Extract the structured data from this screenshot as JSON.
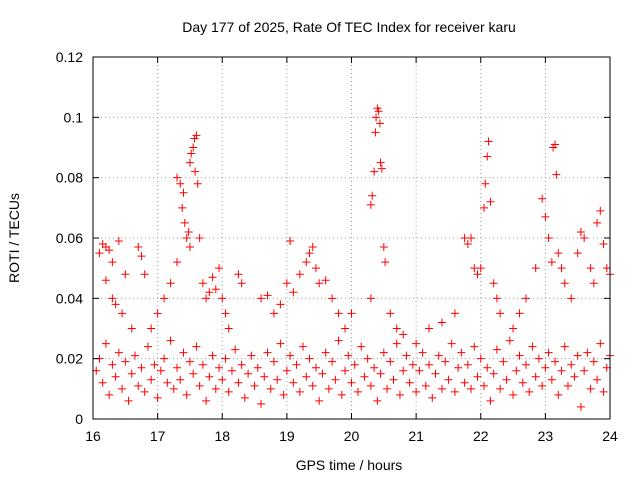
{
  "chart_data": {
    "type": "scatter",
    "title": "Day 177 of 2025, Rate Of TEC Index for receiver karu",
    "xlabel": "GPS time / hours",
    "ylabel": "ROTI / TECUs",
    "xlim": [
      16,
      24
    ],
    "ylim": [
      0,
      0.12
    ],
    "x_ticks": [
      16,
      17,
      18,
      19,
      20,
      21,
      22,
      23,
      24
    ],
    "x_tick_labels": [
      "16",
      "17",
      "18",
      "19",
      "20",
      "21",
      "22",
      "23",
      "24"
    ],
    "y_ticks": [
      0,
      0.02,
      0.04,
      0.06,
      0.08,
      0.1,
      0.12
    ],
    "y_tick_labels": [
      "0",
      "0.02",
      "0.04",
      "0.06",
      "0.08",
      "0.1",
      "0.12"
    ],
    "grid": true,
    "marker": "plus",
    "color": "#ff0000",
    "series": [
      {
        "name": "ROTI",
        "points": [
          [
            16.1,
            0.055
          ],
          [
            16.15,
            0.058
          ],
          [
            16.2,
            0.057
          ],
          [
            16.25,
            0.056
          ],
          [
            16.3,
            0.052
          ],
          [
            16.4,
            0.059
          ],
          [
            16.2,
            0.046
          ],
          [
            16.3,
            0.04
          ],
          [
            16.35,
            0.038
          ],
          [
            16.5,
            0.048
          ],
          [
            16.45,
            0.035
          ],
          [
            16.6,
            0.03
          ],
          [
            16.7,
            0.057
          ],
          [
            16.75,
            0.054
          ],
          [
            16.8,
            0.048
          ],
          [
            16.9,
            0.03
          ],
          [
            17.0,
            0.035
          ],
          [
            17.1,
            0.04
          ],
          [
            17.2,
            0.045
          ],
          [
            17.3,
            0.052
          ],
          [
            17.3,
            0.08
          ],
          [
            17.35,
            0.078
          ],
          [
            17.4,
            0.075
          ],
          [
            17.38,
            0.07
          ],
          [
            17.42,
            0.065
          ],
          [
            17.45,
            0.06
          ],
          [
            17.5,
            0.057
          ],
          [
            17.48,
            0.062
          ],
          [
            17.5,
            0.085
          ],
          [
            17.52,
            0.088
          ],
          [
            17.55,
            0.09
          ],
          [
            17.57,
            0.093
          ],
          [
            17.6,
            0.094
          ],
          [
            17.58,
            0.082
          ],
          [
            17.62,
            0.078
          ],
          [
            17.65,
            0.06
          ],
          [
            17.7,
            0.045
          ],
          [
            17.75,
            0.04
          ],
          [
            17.8,
            0.042
          ],
          [
            17.85,
            0.047
          ],
          [
            17.9,
            0.043
          ],
          [
            17.95,
            0.05
          ],
          [
            18.0,
            0.04
          ],
          [
            18.05,
            0.035
          ],
          [
            18.1,
            0.03
          ],
          [
            18.25,
            0.048
          ],
          [
            18.3,
            0.045
          ],
          [
            18.6,
            0.04
          ],
          [
            18.7,
            0.041
          ],
          [
            18.8,
            0.035
          ],
          [
            18.9,
            0.038
          ],
          [
            19.05,
            0.059
          ],
          [
            19.0,
            0.045
          ],
          [
            19.1,
            0.042
          ],
          [
            19.2,
            0.048
          ],
          [
            19.3,
            0.052
          ],
          [
            19.35,
            0.055
          ],
          [
            19.4,
            0.057
          ],
          [
            19.45,
            0.05
          ],
          [
            19.5,
            0.045
          ],
          [
            19.6,
            0.046
          ],
          [
            19.7,
            0.04
          ],
          [
            19.8,
            0.035
          ],
          [
            19.9,
            0.03
          ],
          [
            20.0,
            0.035
          ],
          [
            20.3,
            0.071
          ],
          [
            20.32,
            0.074
          ],
          [
            20.35,
            0.082
          ],
          [
            20.37,
            0.095
          ],
          [
            20.38,
            0.1
          ],
          [
            20.4,
            0.103
          ],
          [
            20.42,
            0.102
          ],
          [
            20.44,
            0.098
          ],
          [
            20.45,
            0.085
          ],
          [
            20.47,
            0.083
          ],
          [
            20.5,
            0.057
          ],
          [
            20.52,
            0.052
          ],
          [
            20.3,
            0.04
          ],
          [
            20.6,
            0.035
          ],
          [
            20.7,
            0.03
          ],
          [
            20.8,
            0.028
          ],
          [
            21.0,
            0.025
          ],
          [
            21.2,
            0.03
          ],
          [
            21.4,
            0.032
          ],
          [
            21.6,
            0.035
          ],
          [
            21.75,
            0.06
          ],
          [
            21.8,
            0.058
          ],
          [
            21.85,
            0.06
          ],
          [
            21.9,
            0.05
          ],
          [
            21.95,
            0.048
          ],
          [
            22.0,
            0.05
          ],
          [
            22.05,
            0.07
          ],
          [
            22.07,
            0.078
          ],
          [
            22.1,
            0.087
          ],
          [
            22.12,
            0.092
          ],
          [
            22.15,
            0.072
          ],
          [
            22.2,
            0.045
          ],
          [
            22.25,
            0.04
          ],
          [
            22.3,
            0.035
          ],
          [
            22.5,
            0.03
          ],
          [
            22.6,
            0.035
          ],
          [
            22.7,
            0.04
          ],
          [
            22.85,
            0.05
          ],
          [
            22.95,
            0.073
          ],
          [
            23.0,
            0.067
          ],
          [
            23.05,
            0.06
          ],
          [
            23.1,
            0.052
          ],
          [
            23.12,
            0.09
          ],
          [
            23.15,
            0.091
          ],
          [
            23.17,
            0.081
          ],
          [
            23.2,
            0.055
          ],
          [
            23.25,
            0.05
          ],
          [
            23.3,
            0.045
          ],
          [
            23.4,
            0.04
          ],
          [
            23.5,
            0.055
          ],
          [
            23.55,
            0.062
          ],
          [
            23.6,
            0.06
          ],
          [
            23.7,
            0.05
          ],
          [
            23.75,
            0.045
          ],
          [
            23.8,
            0.065
          ],
          [
            23.85,
            0.069
          ],
          [
            23.9,
            0.058
          ],
          [
            23.95,
            0.05
          ],
          [
            24.0,
            0.048
          ],
          [
            16.05,
            0.016
          ],
          [
            16.1,
            0.02
          ],
          [
            16.15,
            0.012
          ],
          [
            16.2,
            0.025
          ],
          [
            16.25,
            0.008
          ],
          [
            16.3,
            0.018
          ],
          [
            16.35,
            0.014
          ],
          [
            16.4,
            0.022
          ],
          [
            16.45,
            0.01
          ],
          [
            16.5,
            0.019
          ],
          [
            16.55,
            0.006
          ],
          [
            16.6,
            0.015
          ],
          [
            16.65,
            0.021
          ],
          [
            16.7,
            0.011
          ],
          [
            16.75,
            0.017
          ],
          [
            16.8,
            0.009
          ],
          [
            16.85,
            0.024
          ],
          [
            16.9,
            0.013
          ],
          [
            16.95,
            0.018
          ],
          [
            17.0,
            0.007
          ],
          [
            17.05,
            0.016
          ],
          [
            17.1,
            0.02
          ],
          [
            17.15,
            0.012
          ],
          [
            17.2,
            0.026
          ],
          [
            17.25,
            0.01
          ],
          [
            17.3,
            0.017
          ],
          [
            17.35,
            0.013
          ],
          [
            17.4,
            0.022
          ],
          [
            17.45,
            0.008
          ],
          [
            17.5,
            0.019
          ],
          [
            17.55,
            0.015
          ],
          [
            17.6,
            0.024
          ],
          [
            17.65,
            0.011
          ],
          [
            17.7,
            0.018
          ],
          [
            17.75,
            0.006
          ],
          [
            17.8,
            0.014
          ],
          [
            17.85,
            0.021
          ],
          [
            17.9,
            0.01
          ],
          [
            17.95,
            0.017
          ],
          [
            18.0,
            0.013
          ],
          [
            18.05,
            0.02
          ],
          [
            18.1,
            0.009
          ],
          [
            18.15,
            0.016
          ],
          [
            18.2,
            0.023
          ],
          [
            18.25,
            0.012
          ],
          [
            18.3,
            0.018
          ],
          [
            18.35,
            0.007
          ],
          [
            18.4,
            0.015
          ],
          [
            18.45,
            0.021
          ],
          [
            18.5,
            0.011
          ],
          [
            18.55,
            0.017
          ],
          [
            18.6,
            0.005
          ],
          [
            18.65,
            0.014
          ],
          [
            18.7,
            0.022
          ],
          [
            18.75,
            0.01
          ],
          [
            18.8,
            0.019
          ],
          [
            18.85,
            0.013
          ],
          [
            18.9,
            0.025
          ],
          [
            18.95,
            0.008
          ],
          [
            19.0,
            0.016
          ],
          [
            19.05,
            0.021
          ],
          [
            19.1,
            0.012
          ],
          [
            19.15,
            0.018
          ],
          [
            19.2,
            0.009
          ],
          [
            19.25,
            0.024
          ],
          [
            19.3,
            0.014
          ],
          [
            19.35,
            0.02
          ],
          [
            19.4,
            0.011
          ],
          [
            19.45,
            0.017
          ],
          [
            19.5,
            0.006
          ],
          [
            19.55,
            0.015
          ],
          [
            19.6,
            0.022
          ],
          [
            19.65,
            0.01
          ],
          [
            19.7,
            0.019
          ],
          [
            19.75,
            0.013
          ],
          [
            19.8,
            0.026
          ],
          [
            19.85,
            0.008
          ],
          [
            19.9,
            0.016
          ],
          [
            19.95,
            0.021
          ],
          [
            20.0,
            0.012
          ],
          [
            20.05,
            0.018
          ],
          [
            20.1,
            0.009
          ],
          [
            20.15,
            0.024
          ],
          [
            20.2,
            0.014
          ],
          [
            20.25,
            0.02
          ],
          [
            20.3,
            0.011
          ],
          [
            20.35,
            0.017
          ],
          [
            20.4,
            0.006
          ],
          [
            20.45,
            0.015
          ],
          [
            20.5,
            0.022
          ],
          [
            20.55,
            0.01
          ],
          [
            20.6,
            0.019
          ],
          [
            20.65,
            0.013
          ],
          [
            20.7,
            0.025
          ],
          [
            20.75,
            0.008
          ],
          [
            20.8,
            0.016
          ],
          [
            20.85,
            0.021
          ],
          [
            20.9,
            0.012
          ],
          [
            20.95,
            0.018
          ],
          [
            21.0,
            0.009
          ],
          [
            21.05,
            0.016
          ],
          [
            21.1,
            0.022
          ],
          [
            21.15,
            0.011
          ],
          [
            21.2,
            0.018
          ],
          [
            21.25,
            0.007
          ],
          [
            21.3,
            0.015
          ],
          [
            21.35,
            0.021
          ],
          [
            21.4,
            0.01
          ],
          [
            21.45,
            0.019
          ],
          [
            21.5,
            0.013
          ],
          [
            21.55,
            0.025
          ],
          [
            21.6,
            0.009
          ],
          [
            21.65,
            0.017
          ],
          [
            21.7,
            0.022
          ],
          [
            21.75,
            0.012
          ],
          [
            21.8,
            0.018
          ],
          [
            21.85,
            0.01
          ],
          [
            21.9,
            0.024
          ],
          [
            21.95,
            0.014
          ],
          [
            22.0,
            0.02
          ],
          [
            22.05,
            0.011
          ],
          [
            22.1,
            0.017
          ],
          [
            22.15,
            0.006
          ],
          [
            22.2,
            0.015
          ],
          [
            22.25,
            0.023
          ],
          [
            22.3,
            0.01
          ],
          [
            22.35,
            0.019
          ],
          [
            22.4,
            0.013
          ],
          [
            22.45,
            0.026
          ],
          [
            22.5,
            0.008
          ],
          [
            22.55,
            0.016
          ],
          [
            22.6,
            0.021
          ],
          [
            22.65,
            0.012
          ],
          [
            22.7,
            0.018
          ],
          [
            22.75,
            0.009
          ],
          [
            22.8,
            0.024
          ],
          [
            22.85,
            0.014
          ],
          [
            22.9,
            0.02
          ],
          [
            22.95,
            0.011
          ],
          [
            23.0,
            0.017
          ],
          [
            23.05,
            0.022
          ],
          [
            23.1,
            0.013
          ],
          [
            23.15,
            0.019
          ],
          [
            23.2,
            0.008
          ],
          [
            23.25,
            0.016
          ],
          [
            23.3,
            0.024
          ],
          [
            23.35,
            0.011
          ],
          [
            23.4,
            0.018
          ],
          [
            23.45,
            0.014
          ],
          [
            23.5,
            0.021
          ],
          [
            23.55,
            0.004
          ],
          [
            23.6,
            0.016
          ],
          [
            23.65,
            0.022
          ],
          [
            23.7,
            0.01
          ],
          [
            23.75,
            0.019
          ],
          [
            23.8,
            0.013
          ],
          [
            23.85,
            0.025
          ],
          [
            23.9,
            0.009
          ],
          [
            23.95,
            0.017
          ],
          [
            24.0,
            0.021
          ]
        ]
      }
    ]
  }
}
